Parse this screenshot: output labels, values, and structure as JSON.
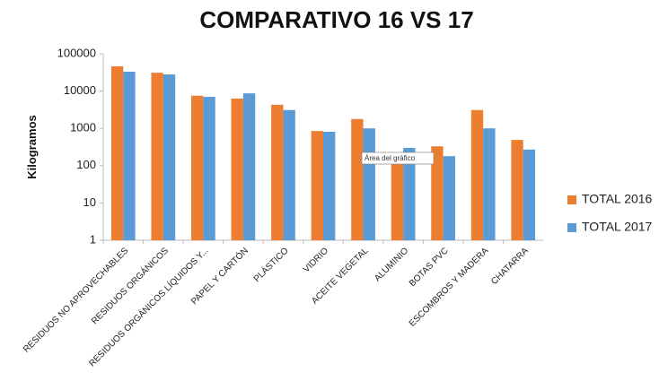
{
  "chart_data": {
    "type": "bar",
    "title": "COMPARATIVO 16 VS 17",
    "y_label": "Kilogramos",
    "annotation": "Área del gráfico",
    "categories": [
      "RESIDUOS NO APROVECHABLES",
      "RESIDUOS ORGÁNICOS",
      "RESIDUOS ORGÁNICOS LÍQUIDOS Y...",
      "PAPEL Y CARTÓN",
      "PLÁSTICO",
      "VIDRIO",
      "ACEITE VEGETAL",
      "ALUMINIO",
      "BOTAS PVC",
      "ESCOMBROS Y MADERA",
      "CHATARRA"
    ],
    "series": [
      {
        "name": "TOTAL 2016",
        "color": "#ed7d31",
        "values": [
          46000,
          31000,
          7500,
          6300,
          4300,
          850,
          1780,
          110,
          330,
          3100,
          490
        ]
      },
      {
        "name": "TOTAL 2017",
        "color": "#5b9bd5",
        "values": [
          33000,
          28000,
          7000,
          8700,
          3100,
          810,
          1000,
          300,
          180,
          1000,
          270
        ]
      }
    ],
    "yscale": "log",
    "ylim": [
      1,
      100000
    ],
    "yticks": [
      1,
      10,
      100,
      1000,
      10000,
      100000
    ],
    "grid": false,
    "legend": "right"
  }
}
